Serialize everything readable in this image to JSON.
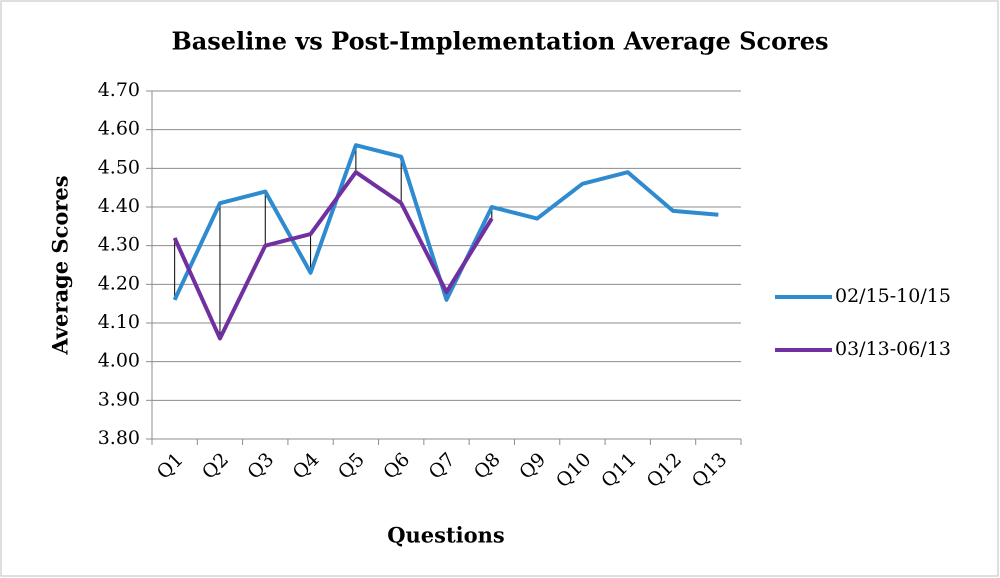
{
  "chart_data": {
    "type": "line",
    "title": "Baseline vs Post-Implementation Average Scores",
    "x_label": "Questions",
    "y_label": "Average Scores",
    "categories": [
      "Q1",
      "Q2",
      "Q3",
      "Q4",
      "Q5",
      "Q6",
      "Q7",
      "Q8",
      "Q9",
      "Q10",
      "Q11",
      "Q12",
      "Q13"
    ],
    "series": [
      {
        "name": "02/15-10/15",
        "color": "#2e8bd0",
        "values": [
          4.16,
          4.41,
          4.44,
          4.23,
          4.56,
          4.53,
          4.16,
          4.4,
          4.37,
          4.46,
          4.49,
          4.39,
          4.38
        ]
      },
      {
        "name": "03/13-06/13",
        "color": "#7030a0",
        "values": [
          4.32,
          4.06,
          4.3,
          4.33,
          4.49,
          4.41,
          4.18,
          4.37,
          null,
          null,
          null,
          null,
          null
        ]
      }
    ],
    "ylim": [
      3.8,
      4.7
    ],
    "yticks": [
      {
        "value": 3.8,
        "label": "3.80"
      },
      {
        "value": 3.9,
        "label": "3.90"
      },
      {
        "value": 4.0,
        "label": "4.00"
      },
      {
        "value": 4.1,
        "label": "4.10"
      },
      {
        "value": 4.2,
        "label": "4.20"
      },
      {
        "value": 4.3,
        "label": "4.30"
      },
      {
        "value": 4.4,
        "label": "4.40"
      },
      {
        "value": 4.5,
        "label": "4.50"
      },
      {
        "value": 4.6,
        "label": "4.60"
      },
      {
        "value": 4.7,
        "label": "4.70"
      }
    ],
    "grid": true,
    "drop_lines": true,
    "legend": "right"
  }
}
